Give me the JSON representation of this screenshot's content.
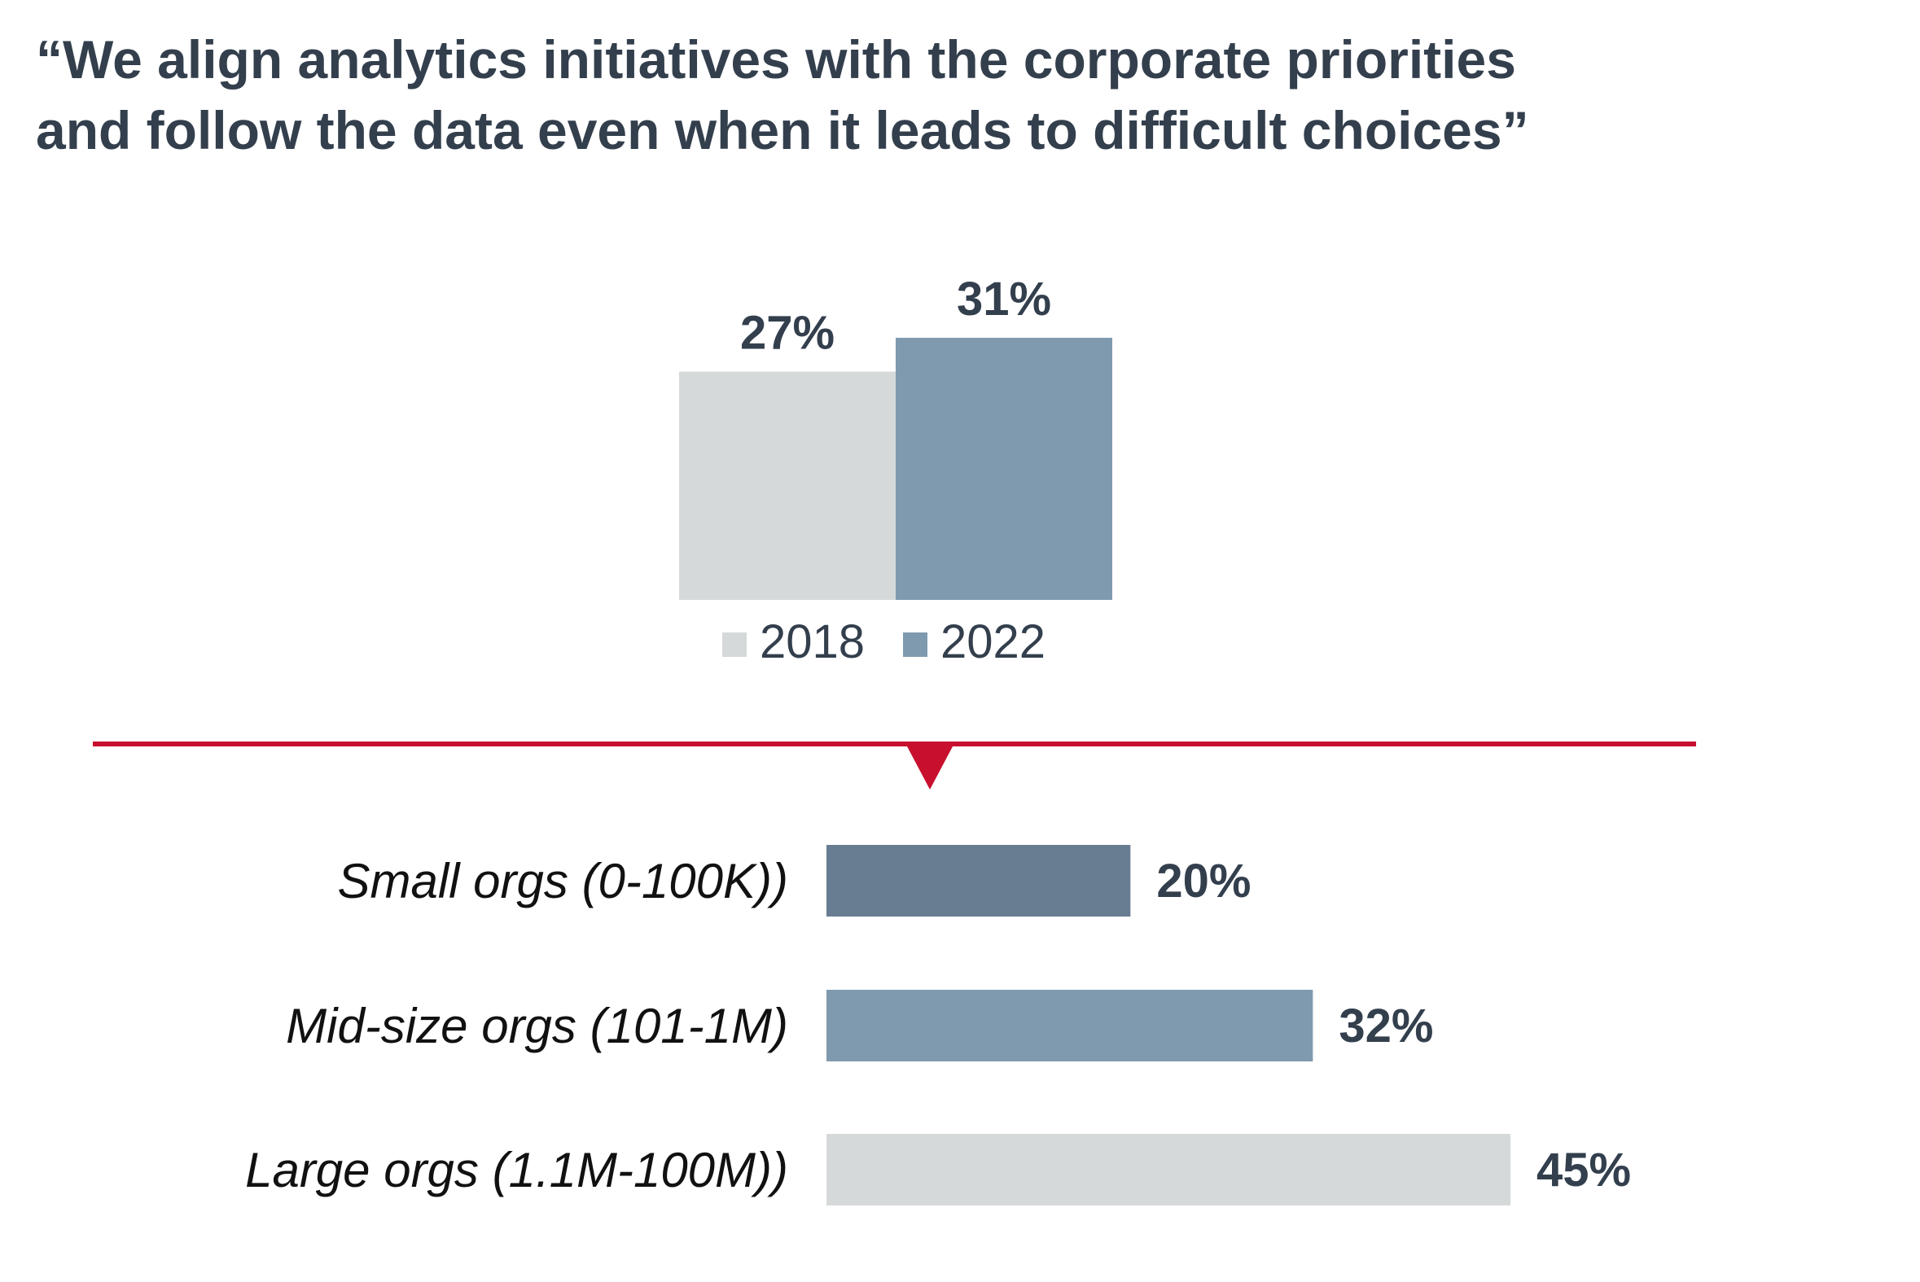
{
  "title": {
    "line1": "“We align analytics initiatives with the corporate priorities",
    "line2": "and follow the data even when it leads to difficult choices”"
  },
  "colors": {
    "text": "#333f4d",
    "light_gray": "#d5d9da",
    "mid_blue": "#7f9aaf",
    "dark_blue": "#687d91",
    "accent_red": "#c8102e"
  },
  "chart_data": [
    {
      "type": "bar",
      "orientation": "vertical",
      "title": "",
      "categories": [
        "2018",
        "2022"
      ],
      "values": [
        27,
        31
      ],
      "labels": [
        "27%",
        "31%"
      ],
      "colors": [
        "#d5d9da",
        "#7f9aaf"
      ],
      "legend": [
        {
          "name": "2018",
          "color": "#d5d9da"
        },
        {
          "name": "2022",
          "color": "#7f9aaf"
        }
      ],
      "legend_position": "bottom",
      "ylim": [
        0,
        31
      ],
      "grid": false
    },
    {
      "type": "bar",
      "orientation": "horizontal",
      "title": "",
      "categories": [
        "Small orgs (0-100K))",
        "Mid-size orgs (101-1M)",
        "Large orgs (1.1M-100M))"
      ],
      "values": [
        20,
        32,
        45
      ],
      "labels": [
        "20%",
        "32%",
        "45%"
      ],
      "colors": [
        "#687d91",
        "#7f9aaf",
        "#d5d9da"
      ],
      "xlim": [
        0,
        45
      ],
      "grid": false
    }
  ]
}
